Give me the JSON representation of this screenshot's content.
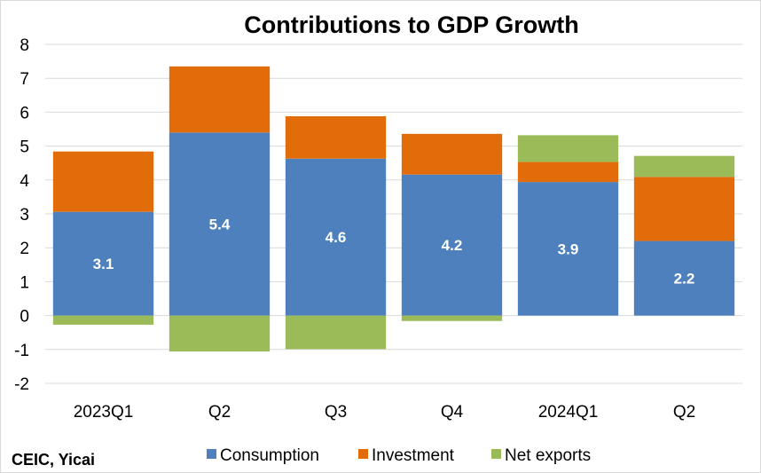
{
  "chart_data": {
    "type": "bar",
    "stacked": true,
    "title": "Contributions to GDP Growth",
    "source": "CEIC, Yicai",
    "categories": [
      "2023Q1",
      "Q2",
      "Q3",
      "Q4",
      "2024Q1",
      "Q2"
    ],
    "ylim": [
      -2,
      8
    ],
    "yticks": [
      -2,
      -1,
      0,
      1,
      2,
      3,
      4,
      5,
      6,
      7,
      8
    ],
    "grid": true,
    "legend_position": "bottom",
    "series": [
      {
        "name": "Consumption",
        "color": "#4e80bd",
        "values": [
          3.06,
          5.4,
          4.63,
          4.16,
          3.94,
          2.2
        ],
        "labels": [
          "3.1",
          "5.4",
          "4.6",
          "4.2",
          "3.9",
          "2.2"
        ]
      },
      {
        "name": "Investment",
        "color": "#e36c0a",
        "values": [
          1.78,
          1.95,
          1.25,
          1.2,
          0.59,
          1.89
        ]
      },
      {
        "name": "Net exports",
        "color": "#9bbb59",
        "values": [
          -0.27,
          -1.06,
          -0.99,
          -0.16,
          0.79,
          0.62
        ]
      }
    ]
  }
}
